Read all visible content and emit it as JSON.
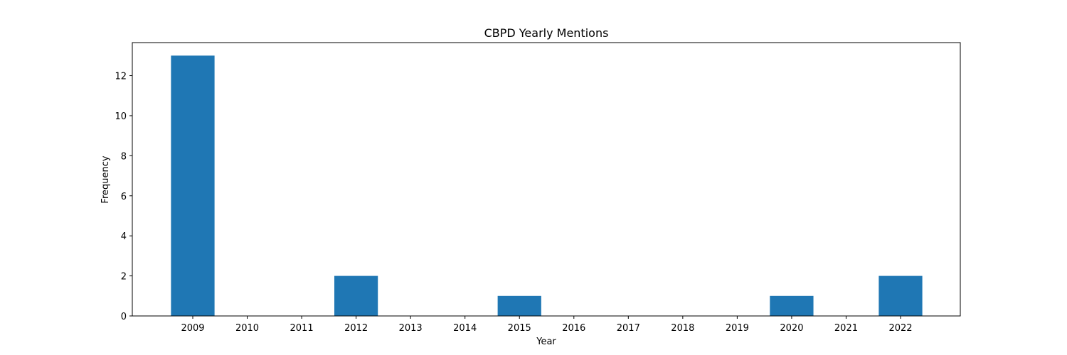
{
  "chart_data": {
    "type": "bar",
    "title": "CBPD Yearly Mentions",
    "xlabel": "Year",
    "ylabel": "Frequency",
    "categories": [
      "2009",
      "2010",
      "2011",
      "2012",
      "2013",
      "2014",
      "2015",
      "2016",
      "2017",
      "2018",
      "2019",
      "2020",
      "2021",
      "2022"
    ],
    "values": [
      13,
      0,
      0,
      2,
      0,
      0,
      1,
      0,
      0,
      0,
      0,
      1,
      0,
      2
    ],
    "ylim": [
      0,
      13.65
    ],
    "yticks": [
      0,
      2,
      4,
      6,
      8,
      10,
      12
    ],
    "grid": false,
    "bar_color": "#1f77b4"
  }
}
